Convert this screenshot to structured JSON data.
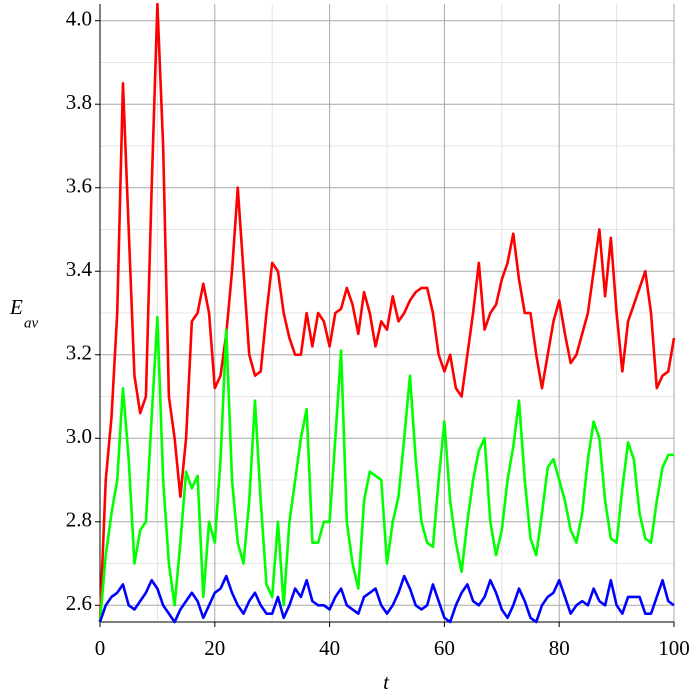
{
  "chart_data": {
    "type": "line",
    "xlabel": "t",
    "ylabel": "E",
    "ylabel_sub": "av",
    "x": [
      0,
      1,
      2,
      3,
      4,
      5,
      6,
      7,
      8,
      9,
      10,
      11,
      12,
      13,
      14,
      15,
      16,
      17,
      18,
      19,
      20,
      21,
      22,
      23,
      24,
      25,
      26,
      27,
      28,
      29,
      30,
      31,
      32,
      33,
      34,
      35,
      36,
      37,
      38,
      39,
      40,
      41,
      42,
      43,
      44,
      45,
      46,
      47,
      48,
      49,
      50,
      51,
      52,
      53,
      54,
      55,
      56,
      57,
      58,
      59,
      60,
      61,
      62,
      63,
      64,
      65,
      66,
      67,
      68,
      69,
      70,
      71,
      72,
      73,
      74,
      75,
      76,
      77,
      78,
      79,
      80,
      81,
      82,
      83,
      84,
      85,
      86,
      87,
      88,
      89,
      90,
      91,
      92,
      93,
      94,
      95,
      96,
      97,
      98,
      99,
      100
    ],
    "series": [
      {
        "color": "#ff0000",
        "values": [
          2.56,
          2.9,
          3.05,
          3.3,
          3.85,
          3.5,
          3.15,
          3.06,
          3.1,
          3.6,
          4.04,
          3.7,
          3.1,
          3.0,
          2.86,
          3.0,
          3.28,
          3.3,
          3.37,
          3.3,
          3.12,
          3.15,
          3.25,
          3.4,
          3.6,
          3.4,
          3.2,
          3.15,
          3.16,
          3.3,
          3.42,
          3.4,
          3.3,
          3.24,
          3.2,
          3.2,
          3.3,
          3.22,
          3.3,
          3.28,
          3.22,
          3.3,
          3.31,
          3.36,
          3.32,
          3.25,
          3.35,
          3.3,
          3.22,
          3.28,
          3.26,
          3.34,
          3.28,
          3.3,
          3.33,
          3.35,
          3.36,
          3.36,
          3.3,
          3.2,
          3.16,
          3.2,
          3.12,
          3.1,
          3.2,
          3.3,
          3.42,
          3.26,
          3.3,
          3.32,
          3.38,
          3.42,
          3.49,
          3.38,
          3.3,
          3.3,
          3.2,
          3.12,
          3.2,
          3.28,
          3.33,
          3.25,
          3.18,
          3.2,
          3.25,
          3.3,
          3.4,
          3.5,
          3.34,
          3.48,
          3.3,
          3.16,
          3.28,
          3.32,
          3.36,
          3.4,
          3.3,
          3.12,
          3.15,
          3.16,
          3.24
        ]
      },
      {
        "color": "#00ff00",
        "values": [
          2.56,
          2.72,
          2.82,
          2.9,
          3.12,
          2.95,
          2.7,
          2.78,
          2.8,
          3.05,
          3.29,
          2.9,
          2.7,
          2.6,
          2.75,
          2.92,
          2.88,
          2.91,
          2.62,
          2.8,
          2.75,
          2.95,
          3.26,
          2.9,
          2.75,
          2.7,
          2.85,
          3.09,
          2.85,
          2.65,
          2.62,
          2.8,
          2.6,
          2.8,
          2.9,
          3.0,
          3.07,
          2.75,
          2.75,
          2.8,
          2.8,
          3.0,
          3.21,
          2.8,
          2.7,
          2.64,
          2.85,
          2.92,
          2.91,
          2.9,
          2.7,
          2.8,
          2.86,
          3.0,
          3.15,
          2.95,
          2.8,
          2.75,
          2.74,
          2.9,
          3.04,
          2.85,
          2.75,
          2.68,
          2.8,
          2.9,
          2.97,
          3.0,
          2.8,
          2.72,
          2.78,
          2.9,
          2.98,
          3.09,
          2.9,
          2.76,
          2.72,
          2.82,
          2.93,
          2.95,
          2.9,
          2.85,
          2.78,
          2.75,
          2.82,
          2.95,
          3.04,
          3.0,
          2.85,
          2.76,
          2.75,
          2.88,
          2.99,
          2.95,
          2.82,
          2.76,
          2.75,
          2.85,
          2.93,
          2.96,
          2.96
        ]
      },
      {
        "color": "#0000ff",
        "values": [
          2.56,
          2.6,
          2.62,
          2.63,
          2.65,
          2.6,
          2.59,
          2.61,
          2.63,
          2.66,
          2.64,
          2.6,
          2.58,
          2.56,
          2.59,
          2.61,
          2.63,
          2.61,
          2.57,
          2.6,
          2.63,
          2.64,
          2.67,
          2.63,
          2.6,
          2.58,
          2.61,
          2.63,
          2.6,
          2.58,
          2.58,
          2.62,
          2.57,
          2.6,
          2.64,
          2.62,
          2.66,
          2.61,
          2.6,
          2.6,
          2.59,
          2.62,
          2.64,
          2.6,
          2.59,
          2.58,
          2.62,
          2.63,
          2.64,
          2.6,
          2.58,
          2.6,
          2.63,
          2.67,
          2.64,
          2.6,
          2.59,
          2.6,
          2.65,
          2.61,
          2.57,
          2.56,
          2.6,
          2.63,
          2.65,
          2.61,
          2.6,
          2.62,
          2.66,
          2.63,
          2.59,
          2.57,
          2.6,
          2.64,
          2.61,
          2.57,
          2.56,
          2.6,
          2.62,
          2.63,
          2.66,
          2.62,
          2.58,
          2.6,
          2.61,
          2.6,
          2.64,
          2.61,
          2.6,
          2.66,
          2.6,
          2.58,
          2.62,
          2.62,
          2.62,
          2.58,
          2.58,
          2.62,
          2.66,
          2.61,
          2.6
        ]
      }
    ],
    "xlim": [
      0,
      100
    ],
    "xticks": [
      0,
      20,
      40,
      60,
      80,
      100
    ],
    "xminorticks": [
      10,
      30,
      50,
      70,
      90
    ],
    "ylim": [
      2.56,
      4.04
    ],
    "yticks": [
      2.6,
      2.8,
      {
        "value": 3,
        "label": "3.0"
      },
      3.2,
      3.4,
      3.6,
      3.8,
      {
        "value": 4,
        "label": "4.0"
      }
    ],
    "yminorticks": [
      2.7,
      2.9,
      3.1,
      3.3,
      3.5,
      3.7,
      3.9
    ],
    "grid": true
  }
}
